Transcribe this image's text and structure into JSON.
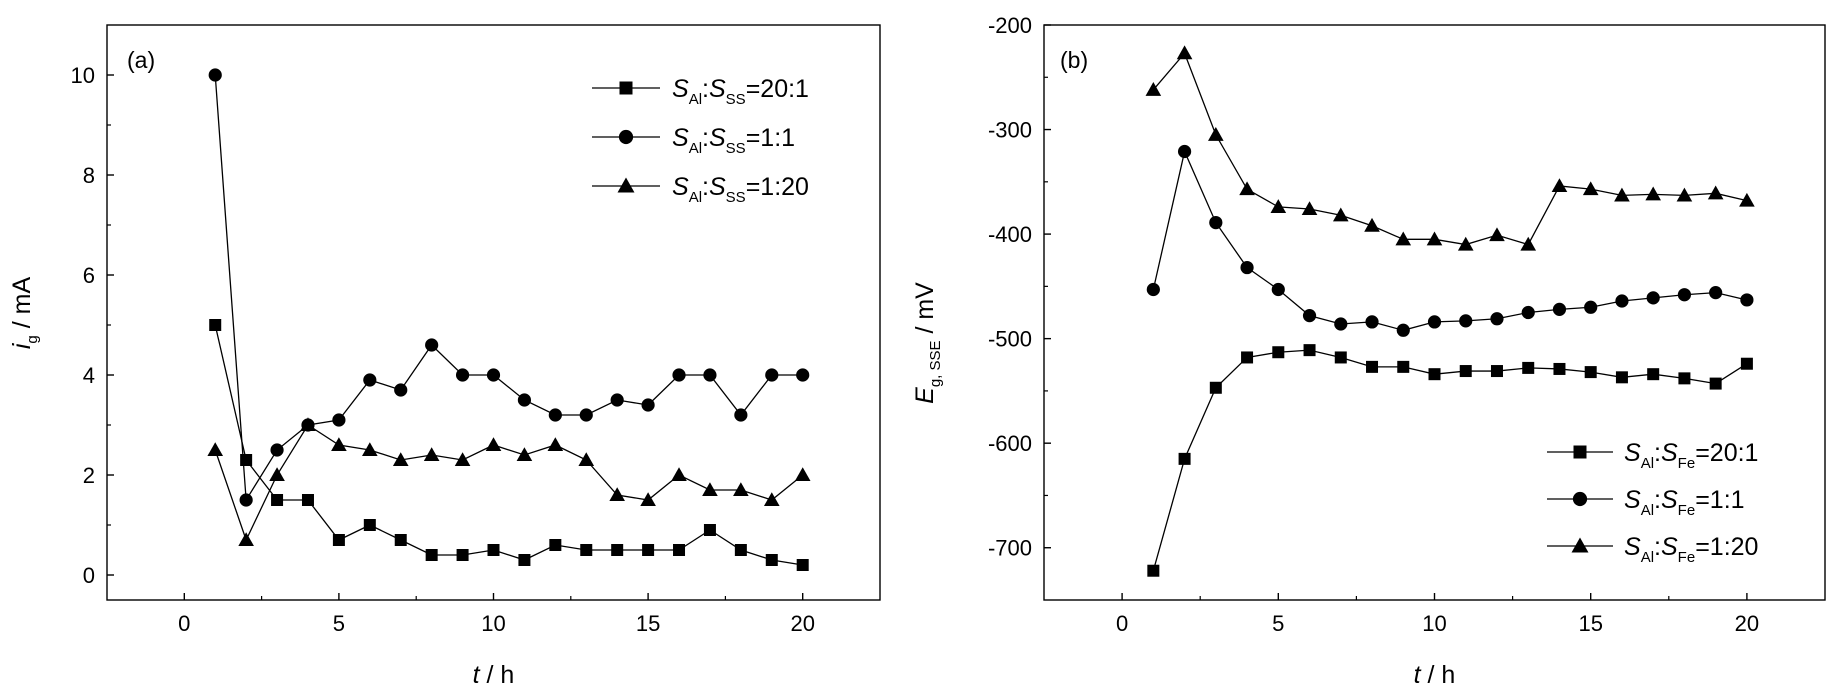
{
  "chart_data": [
    {
      "type": "line",
      "panel_label": "(a)",
      "xlabel": {
        "var": "t",
        "unit": " / h"
      },
      "ylabel": {
        "var": "i",
        "sub": "g",
        "unit": " / mA"
      },
      "xlim": [
        -2.5,
        22.5
      ],
      "ylim": [
        -0.5,
        11
      ],
      "xticks": [
        0,
        5,
        10,
        15,
        20
      ],
      "yticks": [
        0,
        2,
        4,
        6,
        8,
        10
      ],
      "legend_position": "top-right",
      "series": [
        {
          "marker": "square",
          "legend": {
            "a": "S",
            "a_sub": "Al",
            "sep": ":",
            "b": "S",
            "b_sub": "SS",
            "ratio": "=20:1"
          },
          "x": [
            1,
            2,
            3,
            4,
            5,
            6,
            7,
            8,
            9,
            10,
            11,
            12,
            13,
            14,
            15,
            16,
            17,
            18,
            19,
            20
          ],
          "y": [
            5.0,
            2.3,
            1.5,
            1.5,
            0.7,
            1.0,
            0.7,
            0.4,
            0.4,
            0.5,
            0.3,
            0.6,
            0.5,
            0.5,
            0.5,
            0.5,
            0.9,
            0.5,
            0.3,
            0.2
          ]
        },
        {
          "marker": "circle",
          "legend": {
            "a": "S",
            "a_sub": "Al",
            "sep": ":",
            "b": "S",
            "b_sub": "SS",
            "ratio": "=1:1"
          },
          "x": [
            1,
            2,
            3,
            4,
            5,
            6,
            7,
            8,
            9,
            10,
            11,
            12,
            13,
            14,
            15,
            16,
            17,
            18,
            19,
            20
          ],
          "y": [
            10.0,
            1.5,
            2.5,
            3.0,
            3.1,
            3.9,
            3.7,
            4.6,
            4.0,
            4.0,
            3.5,
            3.2,
            3.2,
            3.5,
            3.4,
            4.0,
            4.0,
            3.2,
            4.0,
            4.0
          ]
        },
        {
          "marker": "triangle",
          "legend": {
            "a": "S",
            "a_sub": "Al",
            "sep": ":",
            "b": "S",
            "b_sub": "SS",
            "ratio": "=1:20"
          },
          "x": [
            1,
            2,
            3,
            4,
            5,
            6,
            7,
            8,
            9,
            10,
            11,
            12,
            13,
            14,
            15,
            16,
            17,
            18,
            19,
            20
          ],
          "y": [
            2.5,
            0.7,
            2.0,
            3.0,
            2.6,
            2.5,
            2.3,
            2.4,
            2.3,
            2.6,
            2.4,
            2.6,
            2.3,
            1.6,
            1.5,
            2.0,
            1.7,
            1.7,
            1.5,
            2.0
          ]
        }
      ]
    },
    {
      "type": "line",
      "panel_label": "(b)",
      "xlabel": {
        "var": "t",
        "unit": " / h"
      },
      "ylabel": {
        "var": "E",
        "sub": "g, SSE",
        "unit": " / mV"
      },
      "xlim": [
        -2.5,
        22.5
      ],
      "ylim": [
        -750,
        -200
      ],
      "xticks": [
        0,
        5,
        10,
        15,
        20
      ],
      "yticks": [
        -200,
        -300,
        -400,
        -500,
        -600,
        -700
      ],
      "legend_position": "bottom-right",
      "series": [
        {
          "marker": "square",
          "legend": {
            "a": "S",
            "a_sub": "Al",
            "sep": ":",
            "b": "S",
            "b_sub": "Fe",
            "ratio": "=20:1"
          },
          "x": [
            1,
            2,
            3,
            4,
            5,
            6,
            7,
            8,
            9,
            10,
            11,
            12,
            13,
            14,
            15,
            16,
            17,
            18,
            19,
            20
          ],
          "y": [
            -722,
            -615,
            -547,
            -518,
            -513,
            -511,
            -518,
            -527,
            -527,
            -534,
            -531,
            -531,
            -528,
            -529,
            -532,
            -537,
            -534,
            -538,
            -543,
            -524
          ]
        },
        {
          "marker": "circle",
          "legend": {
            "a": "S",
            "a_sub": "Al",
            "sep": ":",
            "b": "S",
            "b_sub": "Fe",
            "ratio": "=1:1"
          },
          "x": [
            1,
            2,
            3,
            4,
            5,
            6,
            7,
            8,
            9,
            10,
            11,
            12,
            13,
            14,
            15,
            16,
            17,
            18,
            19,
            20
          ],
          "y": [
            -453,
            -321,
            -389,
            -432,
            -453,
            -478,
            -486,
            -484,
            -492,
            -484,
            -483,
            -481,
            -475,
            -472,
            -470,
            -464,
            -461,
            -458,
            -456,
            -463
          ]
        },
        {
          "marker": "triangle",
          "legend": {
            "a": "S",
            "a_sub": "Al",
            "sep": ":",
            "b": "S",
            "b_sub": "Fe",
            "ratio": "=1:20"
          },
          "x": [
            1,
            2,
            3,
            4,
            5,
            6,
            7,
            8,
            9,
            10,
            11,
            12,
            13,
            14,
            15,
            16,
            17,
            18,
            19,
            20
          ],
          "y": [
            -262,
            -227,
            -305,
            -357,
            -374,
            -376,
            -382,
            -392,
            -405,
            -405,
            -410,
            -401,
            -410,
            -354,
            -357,
            -363,
            -362,
            -363,
            -361,
            -368
          ]
        }
      ]
    }
  ]
}
